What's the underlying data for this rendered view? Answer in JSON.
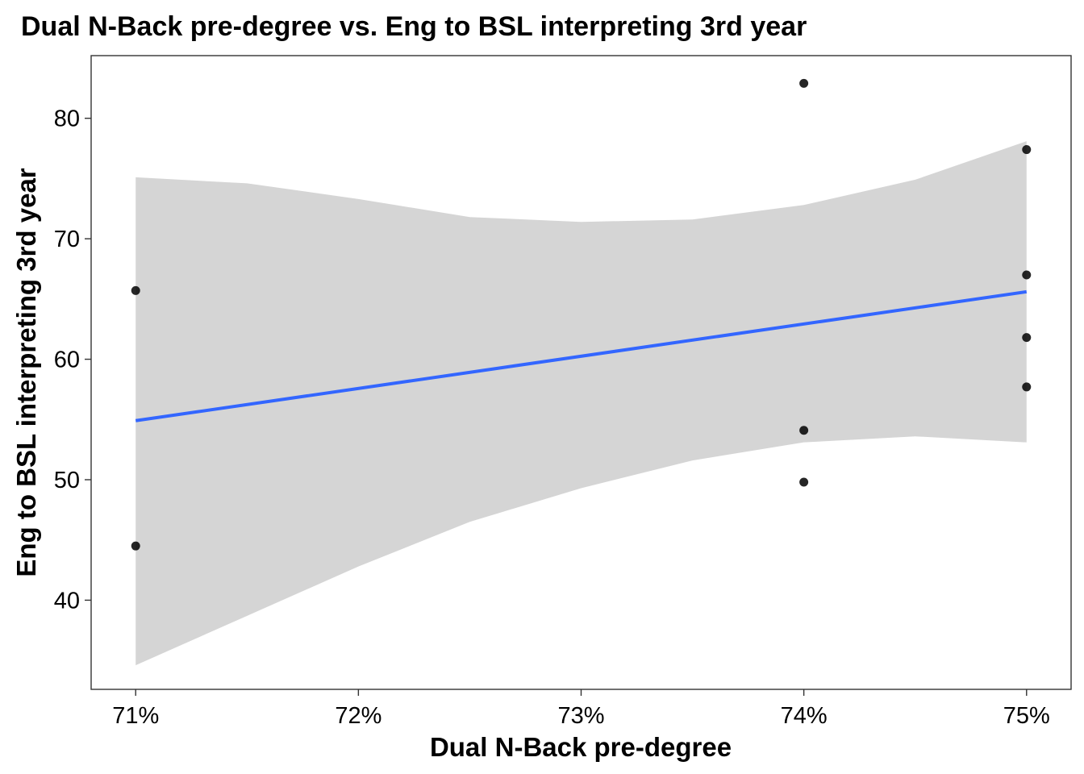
{
  "chart_data": {
    "type": "scatter",
    "title": "Dual N-Back pre-degree vs. Eng to BSL interpreting 3rd year",
    "xlabel": "Dual N-Back pre-degree",
    "ylabel": "Eng to BSL interpreting 3rd year",
    "x_ticks": [
      0.71,
      0.72,
      0.73,
      0.74,
      0.75
    ],
    "x_tick_labels": [
      "71%",
      "72%",
      "73%",
      "74%",
      "75%"
    ],
    "y_ticks": [
      40,
      50,
      60,
      70,
      80
    ],
    "y_tick_labels": [
      "40",
      "50",
      "60",
      "70",
      "80"
    ],
    "xlim": [
      0.708,
      0.752
    ],
    "ylim": [
      32.6,
      85.2
    ],
    "grid": false,
    "points": [
      {
        "x": 0.71,
        "y": 65.7
      },
      {
        "x": 0.71,
        "y": 44.5
      },
      {
        "x": 0.74,
        "y": 82.9
      },
      {
        "x": 0.74,
        "y": 54.1
      },
      {
        "x": 0.74,
        "y": 49.8
      },
      {
        "x": 0.75,
        "y": 77.4
      },
      {
        "x": 0.75,
        "y": 67.0
      },
      {
        "x": 0.75,
        "y": 61.8
      },
      {
        "x": 0.75,
        "y": 57.7
      }
    ],
    "trend_line": {
      "method": "linear",
      "color": "#3366FF",
      "x": [
        0.71,
        0.75
      ],
      "y": [
        54.9,
        65.6
      ]
    },
    "confidence_band": {
      "color": "#D5D5D5",
      "x": [
        0.71,
        0.715,
        0.72,
        0.725,
        0.73,
        0.735,
        0.74,
        0.745,
        0.75
      ],
      "lower": [
        34.6,
        38.7,
        42.8,
        46.5,
        49.3,
        51.6,
        53.1,
        53.6,
        53.1
      ],
      "upper": [
        75.1,
        74.6,
        73.3,
        71.8,
        71.4,
        71.6,
        72.8,
        74.9,
        78.1
      ]
    },
    "point_color": "#000000"
  }
}
